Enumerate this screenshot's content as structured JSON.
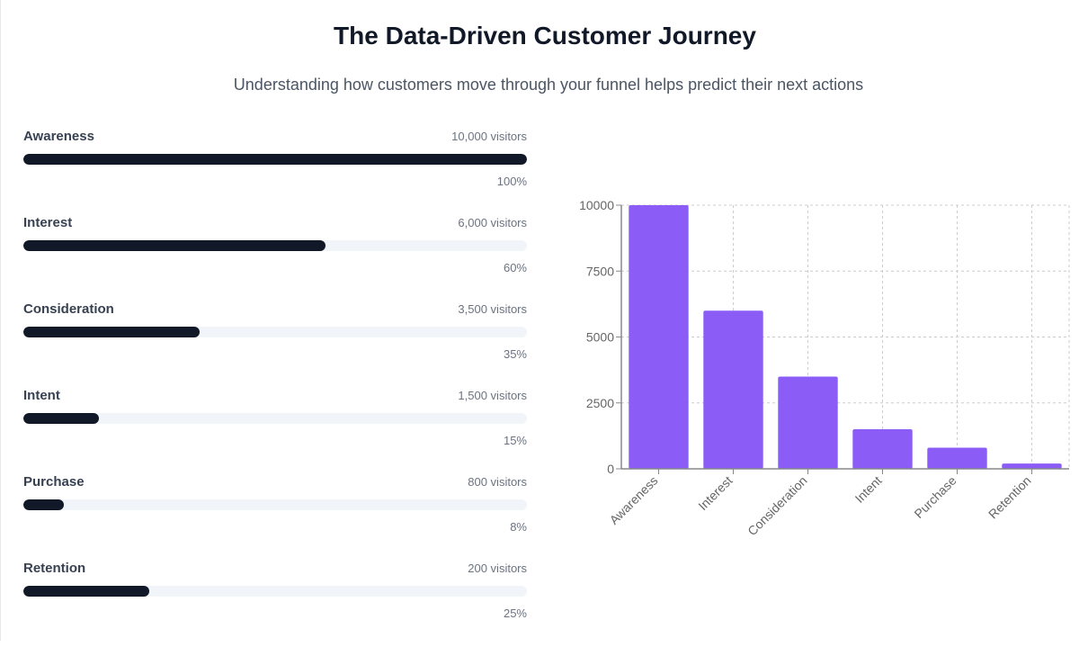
{
  "header": {
    "title": "The Data-Driven Customer Journey",
    "subtitle": "Understanding how customers move through your funnel helps predict their next actions"
  },
  "funnel": [
    {
      "name": "Awareness",
      "count": "10,000 visitors",
      "percent_label": "100%",
      "percent": 100
    },
    {
      "name": "Interest",
      "count": "6,000 visitors",
      "percent_label": "60%",
      "percent": 60
    },
    {
      "name": "Consideration",
      "count": "3,500 visitors",
      "percent_label": "35%",
      "percent": 35
    },
    {
      "name": "Intent",
      "count": "1,500 visitors",
      "percent_label": "15%",
      "percent": 15
    },
    {
      "name": "Purchase",
      "count": "800 visitors",
      "percent_label": "8%",
      "percent": 8
    },
    {
      "name": "Retention",
      "count": "200 visitors",
      "percent_label": "25%",
      "percent": 25
    }
  ],
  "colors": {
    "bar": "#8b5cf6",
    "progress": "#111827",
    "track": "#f1f5f9"
  },
  "chart_data": {
    "type": "bar",
    "categories": [
      "Awareness",
      "Interest",
      "Consideration",
      "Intent",
      "Purchase",
      "Retention"
    ],
    "values": [
      10000,
      6000,
      3500,
      1500,
      800,
      200
    ],
    "yticks": [
      "0",
      "2500",
      "5000",
      "7500",
      "10000"
    ],
    "ylim": [
      0,
      10000
    ],
    "grid": true,
    "xlabel": "",
    "ylabel": ""
  }
}
